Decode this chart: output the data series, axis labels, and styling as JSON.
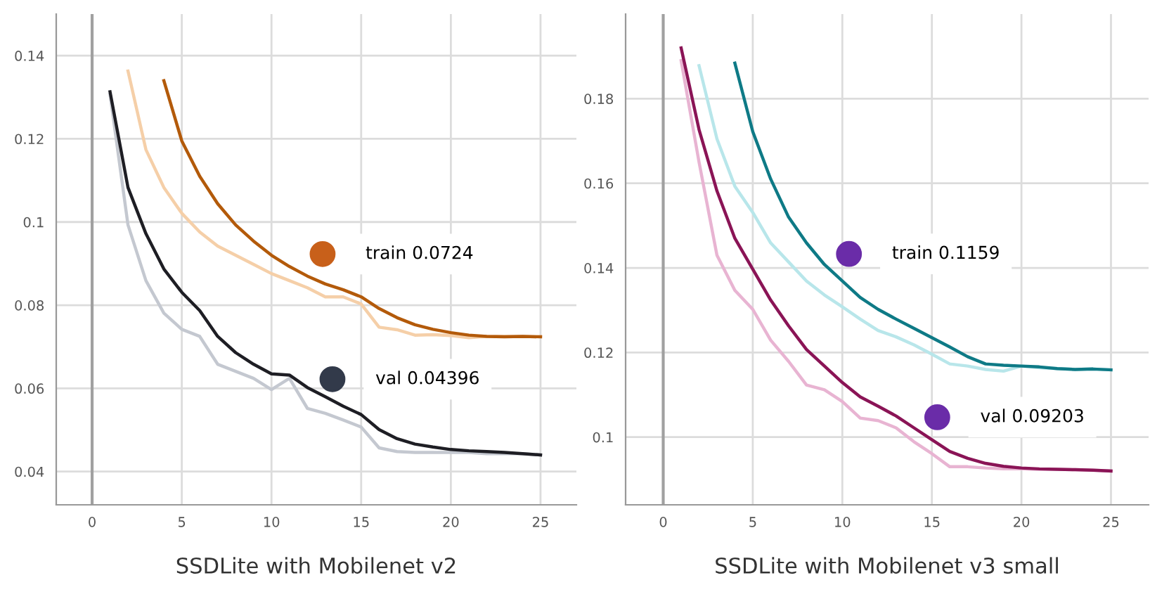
{
  "chart_data": [
    {
      "type": "line",
      "xlabel": "SSDLite with Mobilenet v2",
      "x": [
        1,
        2,
        3,
        4,
        5,
        6,
        7,
        8,
        9,
        10,
        11,
        12,
        13,
        14,
        15,
        16,
        17,
        18,
        19,
        20,
        21,
        22,
        23,
        24,
        25
      ],
      "xlim": [
        -2,
        27
      ],
      "xticks": [
        0,
        5,
        10,
        15,
        20,
        25
      ],
      "ylim": [
        0.032,
        0.15
      ],
      "yticks": [
        0.04,
        0.06,
        0.08,
        {
          "value": 0.1,
          "label": "0.1"
        },
        0.12,
        0.14
      ],
      "grid": true,
      "ref_lines": [
        {
          "axis": "x",
          "value": 0,
          "color": "#a0a0a0"
        }
      ],
      "series": [
        {
          "color": "#f5cfa8",
          "values": [
            null,
            0.1363,
            0.1174,
            0.1083,
            0.1021,
            0.0976,
            0.0942,
            0.092,
            0.0898,
            0.0876,
            0.0859,
            0.0842,
            0.082,
            0.082,
            0.0803,
            0.0747,
            0.0741,
            0.0728,
            0.0729,
            0.0727,
            0.0722,
            0.0725,
            0.0725,
            0.0725,
            0.0724
          ]
        },
        {
          "color": "#b35a0a",
          "values": [
            null,
            null,
            null,
            0.134,
            0.1195,
            0.111,
            0.1044,
            0.0993,
            0.0954,
            0.092,
            0.0893,
            0.087,
            0.0851,
            0.0837,
            0.082,
            0.0792,
            0.077,
            0.0753,
            0.0742,
            0.0734,
            0.0728,
            0.0725,
            0.0724,
            0.0725,
            0.0724
          ]
        },
        {
          "color": "#c4c8d0",
          "values": [
            0.1307,
            0.0993,
            0.0859,
            0.0781,
            0.0742,
            0.0725,
            0.0658,
            0.0641,
            0.0624,
            0.0597,
            0.0624,
            0.0552,
            0.054,
            0.0524,
            0.0507,
            0.0457,
            0.0448,
            0.0446,
            0.0446,
            0.0446,
            0.0446,
            0.0443,
            0.0443,
            0.0443,
            0.044
          ]
        },
        {
          "color": "#1e1e24",
          "values": [
            0.1313,
            0.1083,
            0.0972,
            0.0887,
            0.0831,
            0.0787,
            0.0725,
            0.0686,
            0.0658,
            0.0635,
            0.0632,
            0.0602,
            0.058,
            0.0557,
            0.0537,
            0.0501,
            0.0479,
            0.0466,
            0.0459,
            0.0453,
            0.045,
            0.0448,
            0.0446,
            0.0443,
            0.044
          ]
        },
        {
          "type": "scatter",
          "color": "#c8601a",
          "x": [
            12.85
          ],
          "values": [
            0.0923
          ]
        },
        {
          "type": "scatter",
          "color": "#323a4a",
          "x": [
            13.4
          ],
          "values": [
            0.0622
          ]
        }
      ],
      "annotations": [
        "train 0.0724",
        "val 0.04396"
      ]
    },
    {
      "type": "line",
      "xlabel": "SSDLite with Mobilenet v3 small",
      "x": [
        1,
        2,
        3,
        4,
        5,
        6,
        7,
        8,
        9,
        10,
        11,
        12,
        13,
        14,
        15,
        16,
        17,
        18,
        19,
        20,
        21,
        22,
        23,
        24,
        25
      ],
      "xlim": [
        -2.1,
        27.1
      ],
      "xticks": [
        0,
        5,
        10,
        15,
        20,
        25
      ],
      "ylim": [
        0.084,
        0.2
      ],
      "yticks": [
        {
          "value": 0.1,
          "label": "0.1"
        },
        0.12,
        0.14,
        0.16,
        0.18
      ],
      "grid": true,
      "ref_lines": [
        {
          "axis": "x",
          "value": 0,
          "color": "#a0a0a0"
        }
      ],
      "series": [
        {
          "color": "#b8e6ea",
          "values": [
            null,
            0.1878,
            0.1705,
            0.1593,
            0.1531,
            0.1459,
            0.1414,
            0.1369,
            0.1336,
            0.1308,
            0.1279,
            0.1252,
            0.1237,
            0.1218,
            0.1196,
            0.1173,
            0.1168,
            0.116,
            0.1156,
            0.1168,
            0.1164,
            0.1162,
            0.116,
            0.1161,
            0.1159
          ]
        },
        {
          "color": "#0e7a86",
          "values": [
            null,
            null,
            null,
            0.1884,
            0.1722,
            0.161,
            0.152,
            0.1459,
            0.1408,
            0.1369,
            0.133,
            0.1302,
            0.1279,
            0.1257,
            0.1235,
            0.1213,
            0.119,
            0.1173,
            0.117,
            0.1168,
            0.1166,
            0.1162,
            0.116,
            0.1161,
            0.1159
          ]
        },
        {
          "color": "#e8b4d2",
          "values": [
            0.189,
            0.165,
            0.143,
            0.1347,
            0.1302,
            0.1229,
            0.1179,
            0.1123,
            0.1112,
            0.1084,
            0.1045,
            0.1039,
            0.1022,
            0.0989,
            0.0961,
            0.093,
            0.093,
            0.0927,
            0.0925,
            0.0925,
            0.0924,
            0.0924,
            0.0923,
            0.0922,
            0.092
          ]
        },
        {
          "color": "#8a1456",
          "values": [
            0.192,
            0.1727,
            0.1582,
            0.147,
            0.1397,
            0.1324,
            0.1263,
            0.1207,
            0.1168,
            0.1129,
            0.1095,
            0.1073,
            0.105,
            0.1022,
            0.0994,
            0.0966,
            0.095,
            0.0938,
            0.0931,
            0.0927,
            0.0925,
            0.0924,
            0.0923,
            0.0922,
            0.092
          ]
        },
        {
          "type": "scatter",
          "color": "#6a2ca8",
          "x": [
            10.37
          ],
          "values": [
            0.1433
          ]
        },
        {
          "type": "scatter",
          "color": "#6a2ca8",
          "x": [
            15.3
          ],
          "values": [
            0.1047
          ]
        }
      ],
      "annotations": [
        "train 0.1159",
        "val 0.09203"
      ]
    }
  ]
}
